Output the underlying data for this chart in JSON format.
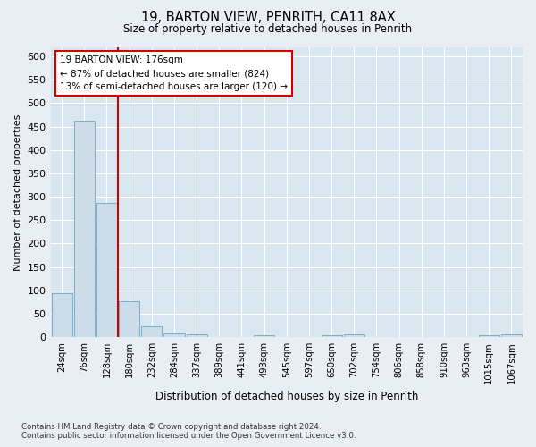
{
  "title1": "19, BARTON VIEW, PENRITH, CA11 8AX",
  "title2": "Size of property relative to detached houses in Penrith",
  "xlabel": "Distribution of detached houses by size in Penrith",
  "ylabel": "Number of detached properties",
  "bar_labels": [
    "24sqm",
    "76sqm",
    "128sqm",
    "180sqm",
    "232sqm",
    "284sqm",
    "337sqm",
    "389sqm",
    "441sqm",
    "493sqm",
    "545sqm",
    "597sqm",
    "650sqm",
    "702sqm",
    "754sqm",
    "806sqm",
    "858sqm",
    "910sqm",
    "963sqm",
    "1015sqm",
    "1067sqm"
  ],
  "bar_values": [
    93,
    462,
    287,
    77,
    23,
    8,
    7,
    0,
    0,
    5,
    0,
    0,
    5,
    7,
    0,
    0,
    0,
    0,
    0,
    5,
    7
  ],
  "bar_color": "#ccdde9",
  "bar_edgecolor": "#7aafc8",
  "vline_color": "#cc0000",
  "annotation_text": "19 BARTON VIEW: 176sqm\n← 87% of detached houses are smaller (824)\n13% of semi-detached houses are larger (120) →",
  "annotation_box_facecolor": "#ffffff",
  "annotation_box_edgecolor": "#cc0000",
  "ylim": [
    0,
    620
  ],
  "yticks": [
    0,
    50,
    100,
    150,
    200,
    250,
    300,
    350,
    400,
    450,
    500,
    550,
    600
  ],
  "footnote": "Contains HM Land Registry data © Crown copyright and database right 2024.\nContains public sector information licensed under the Open Government Licence v3.0.",
  "bg_color": "#e8eef4",
  "plot_bg_color": "#d8e6f0"
}
